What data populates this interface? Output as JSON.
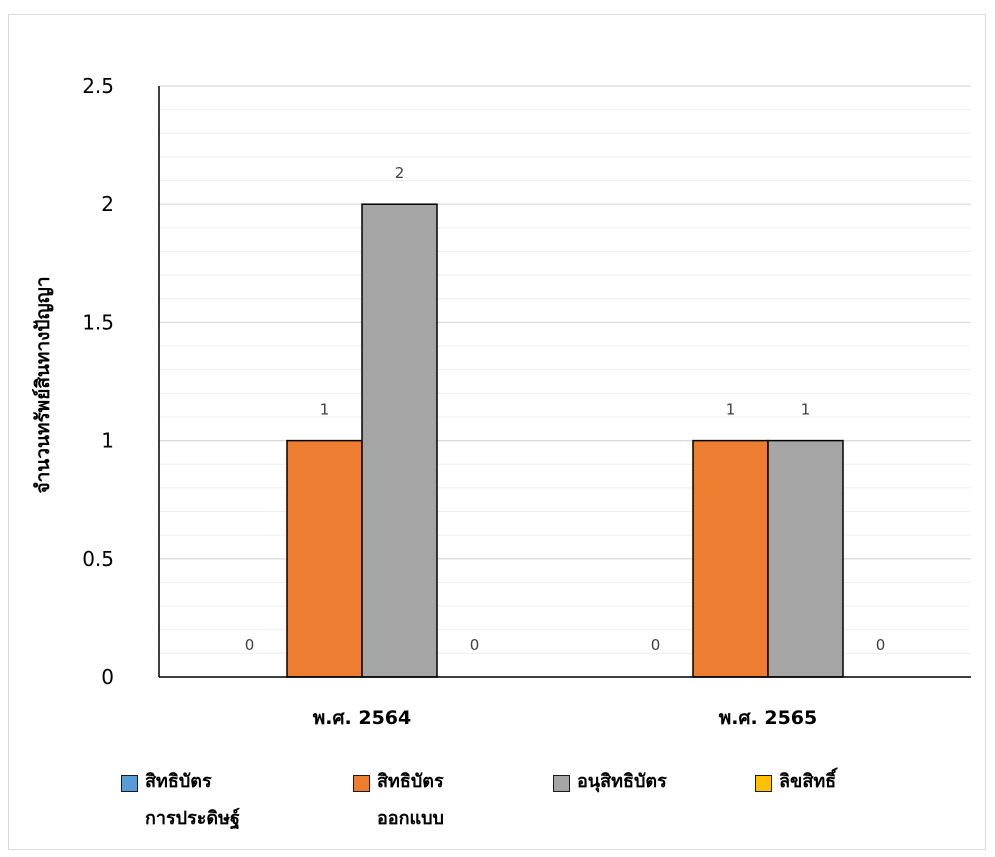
{
  "chart_data": {
    "type": "bar",
    "title": "",
    "xlabel": "",
    "ylabel": "จำนวนทรัพย์สินทางปัญญา",
    "ylim": [
      0,
      2.5
    ],
    "yticks": [
      "0",
      "0.5",
      "1",
      "1.5",
      "2",
      "2.5"
    ],
    "categories": [
      "พ.ศ. 2564",
      "พ.ศ. 2565"
    ],
    "series": [
      {
        "name": "สิทธิบัตรการประดิษฐ์",
        "values": [
          0,
          0
        ],
        "color": "#5b9bd5"
      },
      {
        "name": "สิทธิบัตรออกแบบ",
        "values": [
          1,
          1
        ],
        "color": "#ed7d31"
      },
      {
        "name": "อนุสิทธิบัตร",
        "values": [
          2,
          1
        ],
        "color": "#a5a5a5"
      },
      {
        "name": "ลิขสิทธิ์",
        "values": [
          0,
          0
        ],
        "color": "#ffc000"
      }
    ],
    "data_labels": true,
    "grid": {
      "major": true,
      "minor": true
    },
    "legend_position": "bottom"
  },
  "legend": {
    "items": [
      {
        "lines": [
          "สิทธิบัตร",
          "การประดิษฐ์"
        ]
      },
      {
        "lines": [
          "สิทธิบัตร",
          "ออกแบบ"
        ]
      },
      {
        "lines": [
          "อนุสิทธิบัตร"
        ]
      },
      {
        "lines": [
          "ลิขสิทธิ์"
        ]
      }
    ]
  }
}
